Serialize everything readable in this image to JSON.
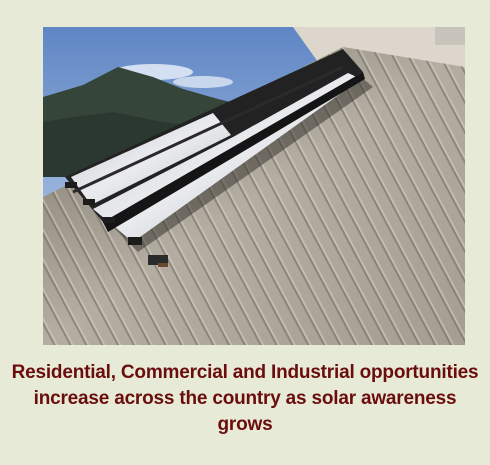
{
  "figure": {
    "caption": "Residential, Commercial and Industrial opportunities increase across the country as solar awareness grows"
  }
}
